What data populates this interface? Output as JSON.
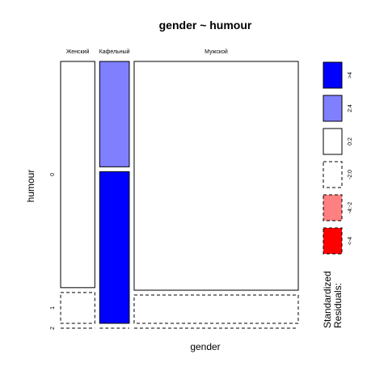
{
  "chart_data": {
    "type": "mosaic",
    "title": "gender ~ humour",
    "xlabel": "gender",
    "ylabel": "humour",
    "x_categories": [
      "Женский",
      "Кафельный",
      "Мужской"
    ],
    "y_categories": [
      "0",
      "1",
      "2"
    ],
    "cells": [
      {
        "x": "Женский",
        "y": "0",
        "proportion_of_column": 0.88,
        "residual_class": "0:2"
      },
      {
        "x": "Женский",
        "y": "1",
        "proportion_of_column": 0.12,
        "residual_class": "-2:0"
      },
      {
        "x": "Женский",
        "y": "2",
        "proportion_of_column": 0.0,
        "residual_class": "-2:0"
      },
      {
        "x": "Кафельный",
        "y": "0",
        "proportion_of_column": 0.41,
        "residual_class": "2:4"
      },
      {
        "x": "Кафельный",
        "y": "1",
        "proportion_of_column": 0.59,
        "residual_class": ">4"
      },
      {
        "x": "Кафельный",
        "y": "2",
        "proportion_of_column": 0.0,
        "residual_class": "-2:0"
      },
      {
        "x": "Мужской",
        "y": "0",
        "proportion_of_column": 0.89,
        "residual_class": "0:2"
      },
      {
        "x": "Мужской",
        "y": "1",
        "proportion_of_column": 0.11,
        "residual_class": "-2:0"
      },
      {
        "x": "Мужской",
        "y": "2",
        "proportion_of_column": 0.0,
        "residual_class": "-2:0"
      }
    ],
    "column_share": [
      0.15,
      0.13,
      0.72
    ],
    "legend": {
      "title_line1": "Standardized",
      "title_line2": "Residuals:",
      "entries": [
        {
          "label": ">4",
          "color": "#0000ff",
          "dashed": false
        },
        {
          "label": "2:4",
          "color": "#8080ff",
          "dashed": false
        },
        {
          "label": "0:2",
          "color": "#ffffff",
          "dashed": false
        },
        {
          "label": "-2:0",
          "color": "#ffffff",
          "dashed": true
        },
        {
          "label": "-4:-2",
          "color": "#ff8080",
          "dashed": true
        },
        {
          "label": "<-4",
          "color": "#ff0000",
          "dashed": true
        }
      ]
    }
  }
}
